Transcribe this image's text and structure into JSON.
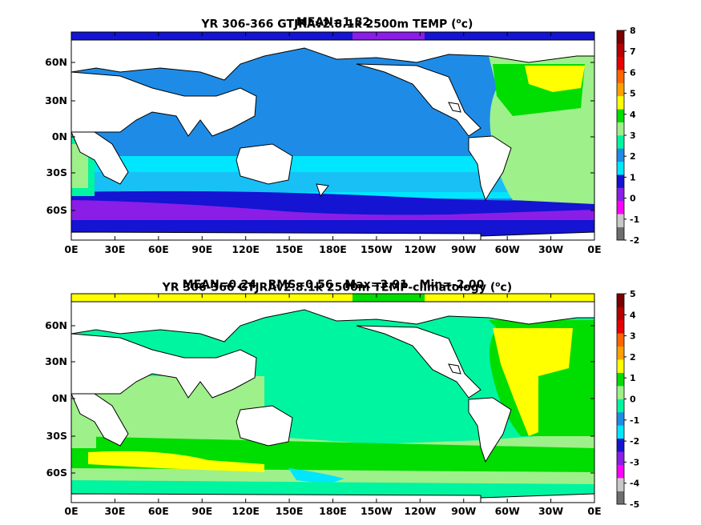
{
  "panels": [
    {
      "title_line1_prefix": "YR 306-366 GTJRAv2.8.1k 2500m TEMP (",
      "title_unit_sup": "o",
      "title_line1_suffix": "c)",
      "title_line2": "MEAN=1.82",
      "colorbar_ticks": [
        "8",
        "7",
        "6",
        "5",
        "4",
        "3",
        "2",
        "1",
        "0",
        "-1",
        "-2"
      ]
    },
    {
      "title_line1_prefix": "YR 306-366 GTJRAv2.8.1k 2500m TEMP-climatology (",
      "title_unit_sup": "o",
      "title_line1_suffix": "c)",
      "title_line2": "MEAN=0.24   RMS=0.56   Max=3.91   Min=-2.00",
      "colorbar_ticks": [
        "5",
        "4",
        "3",
        "2",
        "1",
        "0",
        "-1",
        "-2",
        "-3",
        "-4",
        "-5"
      ]
    }
  ],
  "axes": {
    "lon_ticks": [
      "0E",
      "30E",
      "60E",
      "90E",
      "120E",
      "150E",
      "180E",
      "150W",
      "120W",
      "90W",
      "60W",
      "30W",
      "0E"
    ],
    "lat_ticks": [
      "60N",
      "30N",
      "0N",
      "30S",
      "60S"
    ]
  },
  "palette": [
    "#6e6e6e",
    "#c8c8c8",
    "#ff00ff",
    "#8a1ee6",
    "#1414d2",
    "#00e6ff",
    "#1e8ce6",
    "#00f5a0",
    "#9ef08a",
    "#00dd00",
    "#ffff00",
    "#ffa000",
    "#ff6400",
    "#e60000",
    "#b40000",
    "#7a0000"
  ],
  "colors": {
    "land": "#ffffff",
    "coast": "#000000",
    "panel1_atlantic": "#9ef08a",
    "panel1_pacific": "#1e8ce6",
    "panel2_ocean": "#00f5a0",
    "panel2_atlantic_anomaly": "#ffff00"
  }
}
